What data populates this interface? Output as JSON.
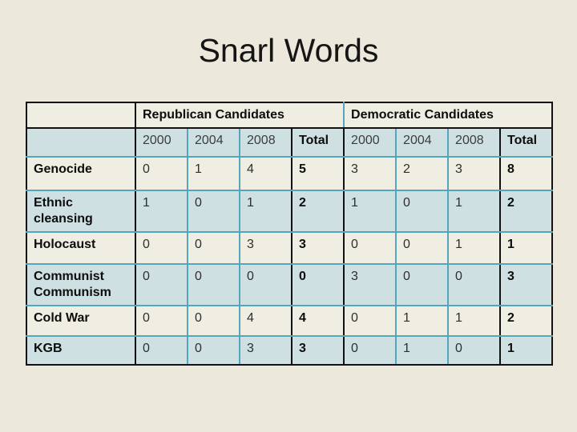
{
  "slide": {
    "title": "Snarl Words"
  },
  "table": {
    "groups": [
      {
        "label": "Republican Candidates"
      },
      {
        "label": "Democratic Candidates"
      }
    ],
    "year_headers": [
      "2000",
      "2004",
      "2008",
      "Total",
      "2000",
      "2004",
      "2008",
      "Total"
    ],
    "rows": [
      {
        "label": "Genocide",
        "values": [
          0,
          1,
          4,
          5,
          3,
          2,
          3,
          8
        ]
      },
      {
        "label": "Ethnic cleansing",
        "values": [
          1,
          0,
          1,
          2,
          1,
          0,
          1,
          2
        ]
      },
      {
        "label": "Holocaust",
        "values": [
          0,
          0,
          3,
          3,
          0,
          0,
          1,
          1
        ]
      },
      {
        "label": "Communist Communism",
        "values": [
          0,
          0,
          0,
          0,
          3,
          0,
          0,
          3
        ]
      },
      {
        "label": "Cold War",
        "values": [
          0,
          0,
          4,
          4,
          0,
          1,
          1,
          2
        ]
      },
      {
        "label": "KGB",
        "values": [
          0,
          0,
          3,
          3,
          0,
          1,
          0,
          1
        ]
      }
    ],
    "colors": {
      "slide_background": "#ECE9DC",
      "cream_cell": "#F0EEE2",
      "blue_cell": "#CFE0E2",
      "teal_border": "#55A6BD",
      "black_border": "#121212"
    }
  },
  "chart_data": {
    "type": "table",
    "title": "Snarl Words",
    "column_groups": [
      {
        "name": "Republican Candidates",
        "columns": [
          "2000",
          "2004",
          "2008",
          "Total"
        ]
      },
      {
        "name": "Democratic Candidates",
        "columns": [
          "2000",
          "2004",
          "2008",
          "Total"
        ]
      }
    ],
    "row_labels": [
      "Genocide",
      "Ethnic cleansing",
      "Holocaust",
      "Communist Communism",
      "Cold War",
      "KGB"
    ],
    "series": [
      {
        "name": "Genocide",
        "republican": [
          0,
          1,
          4
        ],
        "republican_total": 5,
        "democratic": [
          3,
          2,
          3
        ],
        "democratic_total": 8
      },
      {
        "name": "Ethnic cleansing",
        "republican": [
          1,
          0,
          1
        ],
        "republican_total": 2,
        "democratic": [
          1,
          0,
          1
        ],
        "democratic_total": 2
      },
      {
        "name": "Holocaust",
        "republican": [
          0,
          0,
          3
        ],
        "republican_total": 3,
        "democratic": [
          0,
          0,
          1
        ],
        "democratic_total": 1
      },
      {
        "name": "Communist Communism",
        "republican": [
          0,
          0,
          0
        ],
        "republican_total": 0,
        "democratic": [
          3,
          0,
          0
        ],
        "democratic_total": 3
      },
      {
        "name": "Cold War",
        "republican": [
          0,
          0,
          4
        ],
        "republican_total": 4,
        "democratic": [
          0,
          1,
          1
        ],
        "democratic_total": 2
      },
      {
        "name": "KGB",
        "republican": [
          0,
          0,
          3
        ],
        "republican_total": 3,
        "democratic": [
          0,
          1,
          0
        ],
        "democratic_total": 1
      }
    ],
    "years": [
      2000,
      2004,
      2008
    ]
  }
}
